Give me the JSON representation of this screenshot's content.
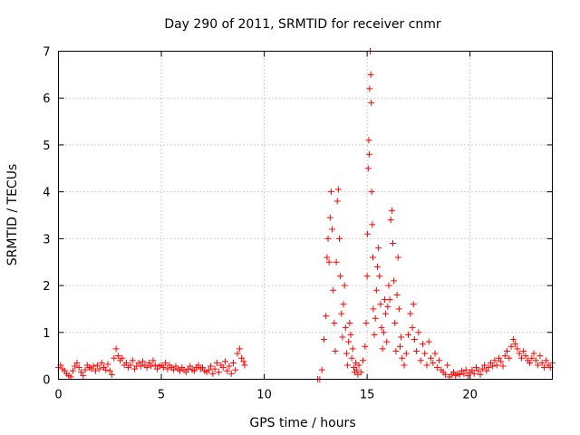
{
  "chart_data": {
    "type": "scatter",
    "title": "Day 290 of 2011, SRMTID for receiver cnmr",
    "xlabel": "GPS time / hours",
    "ylabel": "SRMTID / TECUs",
    "xlim": [
      0,
      24
    ],
    "ylim": [
      0,
      7
    ],
    "xticks": [
      0,
      5,
      10,
      15,
      20
    ],
    "yticks": [
      0,
      1,
      2,
      3,
      4,
      5,
      6,
      7
    ],
    "grid": true,
    "marker": "+",
    "color": "#ff0000",
    "series": [
      {
        "name": "SRMTID",
        "points": [
          [
            0.0,
            0.25
          ],
          [
            0.1,
            0.3
          ],
          [
            0.2,
            0.22
          ],
          [
            0.3,
            0.18
          ],
          [
            0.4,
            0.12
          ],
          [
            0.5,
            0.08
          ],
          [
            0.6,
            0.05
          ],
          [
            0.7,
            0.18
          ],
          [
            0.8,
            0.28
          ],
          [
            0.9,
            0.35
          ],
          [
            1.0,
            0.25
          ],
          [
            1.1,
            0.15
          ],
          [
            1.2,
            0.08
          ],
          [
            1.3,
            0.2
          ],
          [
            1.4,
            0.3
          ],
          [
            1.5,
            0.25
          ],
          [
            1.6,
            0.22
          ],
          [
            1.7,
            0.28
          ],
          [
            1.8,
            0.18
          ],
          [
            1.9,
            0.3
          ],
          [
            2.0,
            0.22
          ],
          [
            2.1,
            0.35
          ],
          [
            2.2,
            0.25
          ],
          [
            2.3,
            0.2
          ],
          [
            2.4,
            0.32
          ],
          [
            2.5,
            0.18
          ],
          [
            2.6,
            0.1
          ],
          [
            2.7,
            0.45
          ],
          [
            2.8,
            0.65
          ],
          [
            2.9,
            0.5
          ],
          [
            3.0,
            0.4
          ],
          [
            3.1,
            0.45
          ],
          [
            3.2,
            0.3
          ],
          [
            3.3,
            0.35
          ],
          [
            3.4,
            0.25
          ],
          [
            3.5,
            0.3
          ],
          [
            3.6,
            0.4
          ],
          [
            3.7,
            0.22
          ],
          [
            3.8,
            0.28
          ],
          [
            3.9,
            0.35
          ],
          [
            4.0,
            0.28
          ],
          [
            4.1,
            0.38
          ],
          [
            4.2,
            0.3
          ],
          [
            4.3,
            0.25
          ],
          [
            4.4,
            0.35
          ],
          [
            4.5,
            0.28
          ],
          [
            4.6,
            0.4
          ],
          [
            4.7,
            0.3
          ],
          [
            4.8,
            0.22
          ],
          [
            4.9,
            0.28
          ],
          [
            5.0,
            0.3
          ],
          [
            5.1,
            0.25
          ],
          [
            5.2,
            0.35
          ],
          [
            5.3,
            0.22
          ],
          [
            5.4,
            0.3
          ],
          [
            5.5,
            0.25
          ],
          [
            5.6,
            0.2
          ],
          [
            5.7,
            0.28
          ],
          [
            5.8,
            0.22
          ],
          [
            5.9,
            0.18
          ],
          [
            6.0,
            0.25
          ],
          [
            6.1,
            0.2
          ],
          [
            6.2,
            0.15
          ],
          [
            6.3,
            0.22
          ],
          [
            6.4,
            0.28
          ],
          [
            6.5,
            0.2
          ],
          [
            6.6,
            0.18
          ],
          [
            6.7,
            0.25
          ],
          [
            6.8,
            0.3
          ],
          [
            6.9,
            0.22
          ],
          [
            7.0,
            0.25
          ],
          [
            7.1,
            0.18
          ],
          [
            7.2,
            0.15
          ],
          [
            7.3,
            0.2
          ],
          [
            7.4,
            0.28
          ],
          [
            7.5,
            0.12
          ],
          [
            7.6,
            0.22
          ],
          [
            7.7,
            0.35
          ],
          [
            7.8,
            0.15
          ],
          [
            7.9,
            0.3
          ],
          [
            8.0,
            0.25
          ],
          [
            8.1,
            0.38
          ],
          [
            8.2,
            0.18
          ],
          [
            8.3,
            0.28
          ],
          [
            8.4,
            0.12
          ],
          [
            8.5,
            0.35
          ],
          [
            8.6,
            0.2
          ],
          [
            8.7,
            0.55
          ],
          [
            8.8,
            0.65
          ],
          [
            8.9,
            0.45
          ],
          [
            9.0,
            0.38
          ],
          [
            9.05,
            0.3
          ],
          [
            12.6,
            0.0
          ],
          [
            12.7,
            0.0
          ],
          [
            12.8,
            0.2
          ],
          [
            12.9,
            0.85
          ],
          [
            13.0,
            1.35
          ],
          [
            13.05,
            2.6
          ],
          [
            13.1,
            3.0
          ],
          [
            13.15,
            2.5
          ],
          [
            13.2,
            3.45
          ],
          [
            13.25,
            4.0
          ],
          [
            13.3,
            3.2
          ],
          [
            13.35,
            1.9
          ],
          [
            13.4,
            1.2
          ],
          [
            13.45,
            0.6
          ],
          [
            13.5,
            2.5
          ],
          [
            13.55,
            3.8
          ],
          [
            13.6,
            4.05
          ],
          [
            13.65,
            3.0
          ],
          [
            13.7,
            2.2
          ],
          [
            13.75,
            1.4
          ],
          [
            13.8,
            0.9
          ],
          [
            13.85,
            1.6
          ],
          [
            13.9,
            2.0
          ],
          [
            13.95,
            1.1
          ],
          [
            14.0,
            0.55
          ],
          [
            14.05,
            0.3
          ],
          [
            14.1,
            0.8
          ],
          [
            14.15,
            1.2
          ],
          [
            14.2,
            0.95
          ],
          [
            14.25,
            0.45
          ],
          [
            14.3,
            0.65
          ],
          [
            14.35,
            0.25
          ],
          [
            14.4,
            0.15
          ],
          [
            14.45,
            0.35
          ],
          [
            14.5,
            0.2
          ],
          [
            14.55,
            0.1
          ],
          [
            14.6,
            0.3
          ],
          [
            14.7,
            0.15
          ],
          [
            14.8,
            0.4
          ],
          [
            14.9,
            0.7
          ],
          [
            14.95,
            1.2
          ],
          [
            15.0,
            2.2
          ],
          [
            15.02,
            3.1
          ],
          [
            15.05,
            4.5
          ],
          [
            15.08,
            5.1
          ],
          [
            15.1,
            4.8
          ],
          [
            15.12,
            6.2
          ],
          [
            15.15,
            7.0
          ],
          [
            15.18,
            6.5
          ],
          [
            15.2,
            5.9
          ],
          [
            15.22,
            4.0
          ],
          [
            15.25,
            3.3
          ],
          [
            15.28,
            2.6
          ],
          [
            15.3,
            1.5
          ],
          [
            15.35,
            0.95
          ],
          [
            15.4,
            1.3
          ],
          [
            15.45,
            1.9
          ],
          [
            15.5,
            2.4
          ],
          [
            15.55,
            2.8
          ],
          [
            15.6,
            2.2
          ],
          [
            15.65,
            1.6
          ],
          [
            15.7,
            1.1
          ],
          [
            15.75,
            0.65
          ],
          [
            15.8,
            1.0
          ],
          [
            15.85,
            1.7
          ],
          [
            15.9,
            1.4
          ],
          [
            15.95,
            0.8
          ],
          [
            16.0,
            1.55
          ],
          [
            16.05,
            2.0
          ],
          [
            16.1,
            1.7
          ],
          [
            16.15,
            3.4
          ],
          [
            16.2,
            3.6
          ],
          [
            16.25,
            2.9
          ],
          [
            16.3,
            2.1
          ],
          [
            16.35,
            1.2
          ],
          [
            16.4,
            0.6
          ],
          [
            16.45,
            1.8
          ],
          [
            16.5,
            2.6
          ],
          [
            16.55,
            1.5
          ],
          [
            16.6,
            0.7
          ],
          [
            16.65,
            0.9
          ],
          [
            16.7,
            0.45
          ],
          [
            16.8,
            0.3
          ],
          [
            16.9,
            0.55
          ],
          [
            17.0,
            0.95
          ],
          [
            17.1,
            1.4
          ],
          [
            17.2,
            1.1
          ],
          [
            17.25,
            1.6
          ],
          [
            17.3,
            0.85
          ],
          [
            17.4,
            0.6
          ],
          [
            17.5,
            1.0
          ],
          [
            17.6,
            0.4
          ],
          [
            17.7,
            0.75
          ],
          [
            17.8,
            0.55
          ],
          [
            17.9,
            0.3
          ],
          [
            18.0,
            0.8
          ],
          [
            18.1,
            0.45
          ],
          [
            18.2,
            0.35
          ],
          [
            18.3,
            0.55
          ],
          [
            18.4,
            0.25
          ],
          [
            18.5,
            0.4
          ],
          [
            18.6,
            0.2
          ],
          [
            18.7,
            0.15
          ],
          [
            18.8,
            0.1
          ],
          [
            18.9,
            0.3
          ],
          [
            19.0,
            0.05
          ],
          [
            19.1,
            0.1
          ],
          [
            19.2,
            0.15
          ],
          [
            19.3,
            0.08
          ],
          [
            19.4,
            0.12
          ],
          [
            19.5,
            0.1
          ],
          [
            19.6,
            0.18
          ],
          [
            19.7,
            0.12
          ],
          [
            19.8,
            0.2
          ],
          [
            19.9,
            0.08
          ],
          [
            20.0,
            0.15
          ],
          [
            20.1,
            0.2
          ],
          [
            20.2,
            0.12
          ],
          [
            20.3,
            0.25
          ],
          [
            20.4,
            0.18
          ],
          [
            20.5,
            0.1
          ],
          [
            20.6,
            0.22
          ],
          [
            20.7,
            0.3
          ],
          [
            20.8,
            0.18
          ],
          [
            20.9,
            0.25
          ],
          [
            21.0,
            0.35
          ],
          [
            21.1,
            0.28
          ],
          [
            21.2,
            0.4
          ],
          [
            21.3,
            0.3
          ],
          [
            21.4,
            0.45
          ],
          [
            21.5,
            0.38
          ],
          [
            21.6,
            0.28
          ],
          [
            21.7,
            0.5
          ],
          [
            21.8,
            0.6
          ],
          [
            21.9,
            0.45
          ],
          [
            22.0,
            0.7
          ],
          [
            22.1,
            0.85
          ],
          [
            22.2,
            0.75
          ],
          [
            22.3,
            0.65
          ],
          [
            22.4,
            0.55
          ],
          [
            22.5,
            0.45
          ],
          [
            22.6,
            0.6
          ],
          [
            22.7,
            0.5
          ],
          [
            22.8,
            0.4
          ],
          [
            22.9,
            0.35
          ],
          [
            23.0,
            0.45
          ],
          [
            23.1,
            0.55
          ],
          [
            23.2,
            0.4
          ],
          [
            23.3,
            0.3
          ],
          [
            23.4,
            0.5
          ],
          [
            23.5,
            0.35
          ],
          [
            23.6,
            0.25
          ],
          [
            23.7,
            0.4
          ],
          [
            23.8,
            0.3
          ],
          [
            23.9,
            0.25
          ],
          [
            24.0,
            0.35
          ]
        ]
      }
    ]
  }
}
